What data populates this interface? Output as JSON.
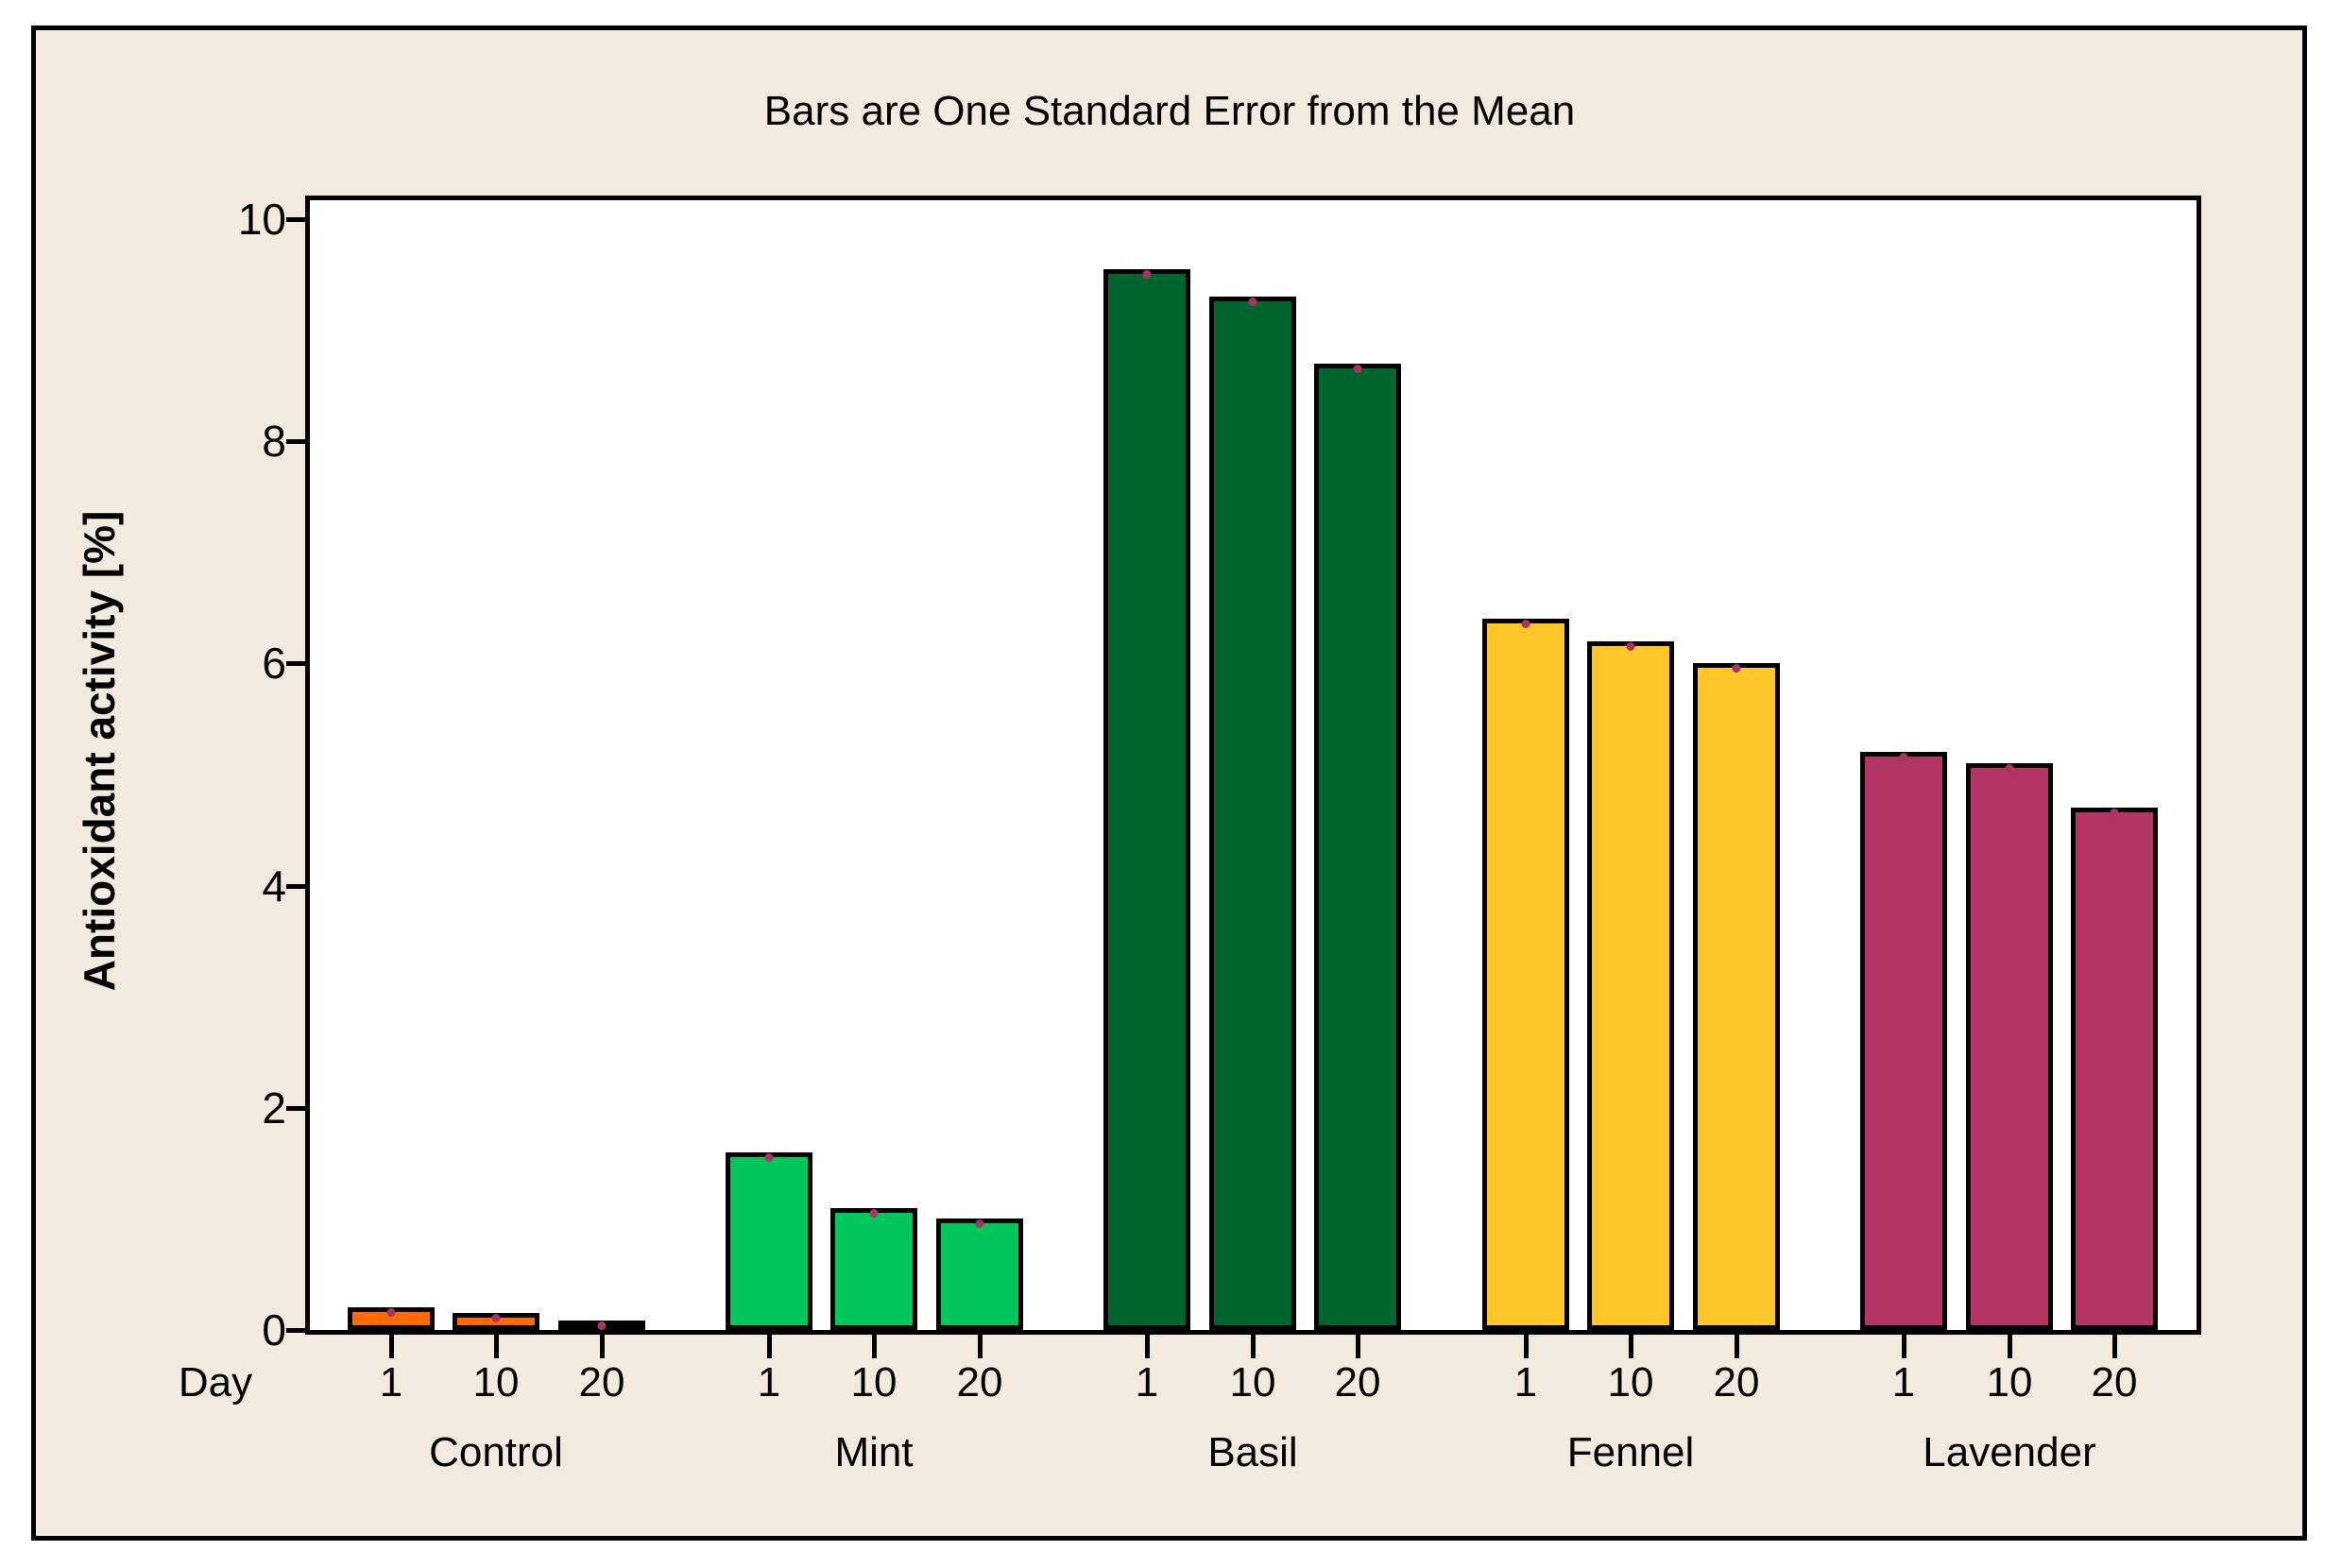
{
  "chart_data": {
    "type": "bar",
    "title": "Bars are One Standard Error from the Mean",
    "ylabel": "Antioxidant activity [%]",
    "xlabel_prefix": "Day",
    "ylim": [
      0,
      10
    ],
    "yticks": [
      0,
      2,
      4,
      6,
      8,
      10
    ],
    "grid": false,
    "legend": "none",
    "day_labels": [
      "1",
      "10",
      "20"
    ],
    "groups": [
      {
        "name": "Control",
        "color": "#FF6A05",
        "values": [
          0.2,
          0.15,
          0.08
        ]
      },
      {
        "name": "Mint",
        "color": "#00C65C",
        "values": [
          1.6,
          1.1,
          1.0
        ]
      },
      {
        "name": "Basil",
        "color": "#00642F",
        "values": [
          9.55,
          9.3,
          8.7
        ]
      },
      {
        "name": "Fennel",
        "color": "#FFC72A",
        "values": [
          6.4,
          6.2,
          6.0
        ]
      },
      {
        "name": "Lavender",
        "color": "#B23565",
        "values": [
          5.2,
          5.1,
          4.7
        ]
      }
    ],
    "error_markers": {
      "style": "dot-at-bar-top",
      "color": "#AA3366"
    }
  },
  "colors": {
    "figure_background": "#F2EADF",
    "plot_background": "#FFFFFF",
    "frame": "#000000",
    "text": "#000000"
  }
}
